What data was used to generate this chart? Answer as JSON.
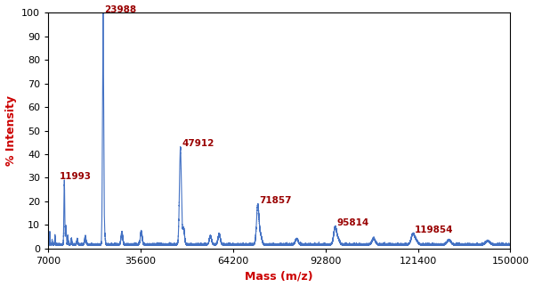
{
  "xlim": [
    7000,
    150000
  ],
  "ylim": [
    0,
    100
  ],
  "xlabel": "Mass (m/z)",
  "ylabel": "% Intensity",
  "xlabel_color": "#cc0000",
  "ylabel_color": "#cc0000",
  "line_color": "#4472c4",
  "label_color": "#990000",
  "background_color": "#ffffff",
  "peaks": [
    {
      "mass": 11993,
      "intensity": 27,
      "label": "11993"
    },
    {
      "mass": 23988,
      "intensity": 98,
      "label": "23988"
    },
    {
      "mass": 47912,
      "intensity": 41,
      "label": "47912"
    },
    {
      "mass": 71857,
      "intensity": 17,
      "label": "71857"
    },
    {
      "mass": 95814,
      "intensity": 7.5,
      "label": "95814"
    },
    {
      "mass": 119854,
      "intensity": 4.5,
      "label": "119854"
    }
  ],
  "xticks": [
    7000,
    35600,
    64200,
    92800,
    121400,
    150000
  ],
  "xtick_labels": [
    "7000",
    "35600",
    "64200",
    "92800",
    "121400",
    "150000"
  ],
  "yticks": [
    0,
    10,
    20,
    30,
    40,
    50,
    60,
    70,
    80,
    90,
    100
  ],
  "peak_data": [
    [
      7500,
      5.5,
      60
    ],
    [
      8200,
      2.0,
      60
    ],
    [
      9100,
      4.0,
      80
    ],
    [
      11993,
      27,
      130
    ],
    [
      12500,
      8,
      120
    ],
    [
      13100,
      3.5,
      100
    ],
    [
      14200,
      2.5,
      120
    ],
    [
      16000,
      2.5,
      150
    ],
    [
      18500,
      3.5,
      200
    ],
    [
      23988,
      98,
      180
    ],
    [
      24500,
      4.0,
      160
    ],
    [
      29800,
      5.5,
      250
    ],
    [
      35800,
      5.5,
      280
    ],
    [
      47912,
      41,
      300
    ],
    [
      48900,
      7.0,
      280
    ],
    [
      57200,
      3.5,
      350
    ],
    [
      59900,
      4.5,
      350
    ],
    [
      71857,
      17,
      380
    ],
    [
      72800,
      3.5,
      340
    ],
    [
      83900,
      2.5,
      420
    ],
    [
      95814,
      7.5,
      450
    ],
    [
      96800,
      2.0,
      400
    ],
    [
      107700,
      2.5,
      500
    ],
    [
      119854,
      4.5,
      520
    ],
    [
      120900,
      1.5,
      480
    ],
    [
      131000,
      2.0,
      550
    ],
    [
      143000,
      1.5,
      600
    ]
  ],
  "baseline": 1.5,
  "baseline_noise_scale": 0.4
}
